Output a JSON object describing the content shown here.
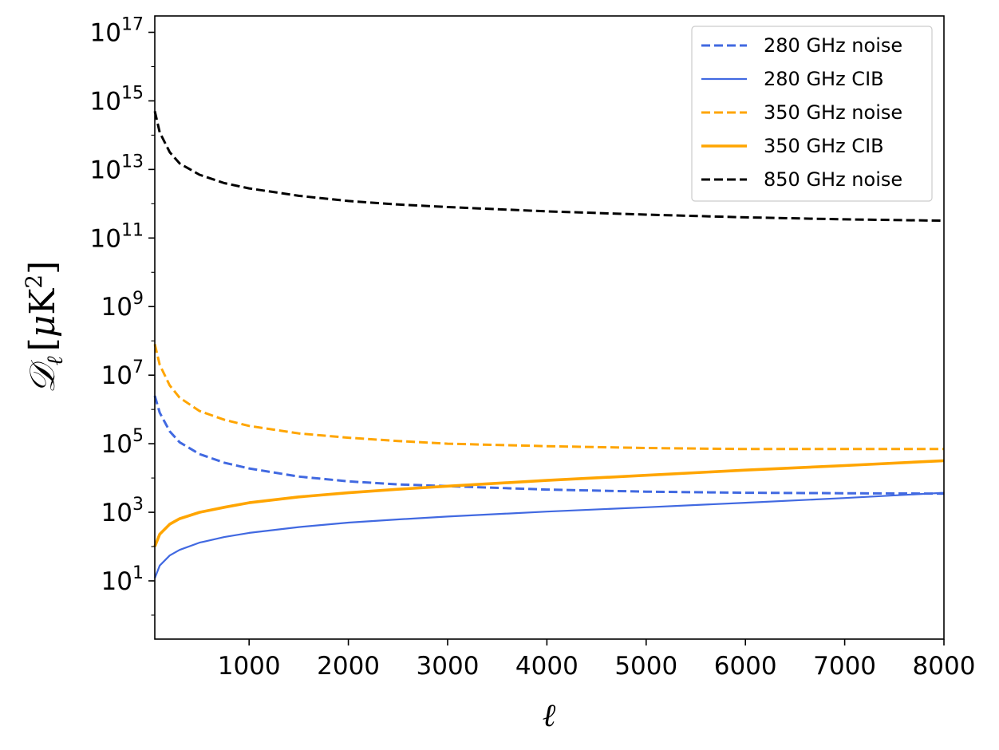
{
  "chart_data": {
    "type": "line",
    "xlabel": "ℓ",
    "ylabel": {
      "symbol": "𝒟",
      "subscript": "ℓ",
      "units": "[μK²]",
      "units_open": "[",
      "units_mu": "μ",
      "units_k": "K",
      "units_exp": "2",
      "units_close": "]"
    },
    "xlim": [
      50,
      8000
    ],
    "ylim": [
      0.2,
      3e+17
    ],
    "y_scale": "log",
    "x_ticks": [
      1000,
      2000,
      3000,
      4000,
      5000,
      6000,
      7000,
      8000
    ],
    "x_tick_labels": [
      "1000",
      "2000",
      "3000",
      "4000",
      "5000",
      "6000",
      "7000",
      "8000"
    ],
    "y_ticks": [
      {
        "value": 10,
        "base": "10",
        "exp": "1"
      },
      {
        "value": 1000,
        "base": "10",
        "exp": "3"
      },
      {
        "value": 100000,
        "base": "10",
        "exp": "5"
      },
      {
        "value": 10000000,
        "base": "10",
        "exp": "7"
      },
      {
        "value": 1000000000,
        "base": "10",
        "exp": "9"
      },
      {
        "value": 100000000000,
        "base": "10",
        "exp": "11"
      },
      {
        "value": 10000000000000,
        "base": "10",
        "exp": "13"
      },
      {
        "value": 1000000000000000,
        "base": "10",
        "exp": "15"
      },
      {
        "value": 100000000000000000,
        "base": "10",
        "exp": "17"
      }
    ],
    "grid": false,
    "legend_position": "top-right",
    "series": [
      {
        "name": "280 GHz noise",
        "color": "#4169e1",
        "style": "dashed",
        "x": [
          50,
          100,
          200,
          300,
          500,
          750,
          1000,
          1500,
          2000,
          2500,
          3000,
          4000,
          5000,
          6000,
          7000,
          8000
        ],
        "y": [
          2500000,
          800000,
          230000,
          110000,
          50000,
          28000,
          19000,
          11000,
          8000,
          6500,
          5800,
          4600,
          4000,
          3700,
          3600,
          3500
        ]
      },
      {
        "name": "280 GHz CIB",
        "color": "#4169e1",
        "style": "solid",
        "x": [
          50,
          100,
          200,
          300,
          500,
          750,
          1000,
          1500,
          2000,
          2500,
          3000,
          4000,
          5000,
          6000,
          7000,
          8000
        ],
        "y": [
          12,
          28,
          55,
          80,
          130,
          190,
          250,
          370,
          500,
          620,
          750,
          1050,
          1400,
          1900,
          2600,
          3700
        ]
      },
      {
        "name": "350 GHz noise",
        "color": "#ffa500",
        "style": "dashed",
        "x": [
          50,
          100,
          200,
          300,
          500,
          750,
          1000,
          1500,
          2000,
          2500,
          3000,
          4000,
          5000,
          6000,
          7000,
          8000
        ],
        "y": [
          80000000,
          20000000,
          5000000,
          2200000,
          900000,
          500000,
          330000,
          200000,
          150000,
          120000,
          100000,
          85000,
          75000,
          70000,
          70000,
          70000
        ]
      },
      {
        "name": "350 GHz CIB",
        "color": "#ffa500",
        "style": "solid",
        "x": [
          50,
          100,
          200,
          300,
          500,
          750,
          1000,
          1500,
          2000,
          2500,
          3000,
          4000,
          5000,
          6000,
          7000,
          8000
        ],
        "y": [
          100,
          230,
          450,
          650,
          1000,
          1400,
          1900,
          2800,
          3700,
          4700,
          5800,
          8500,
          12000,
          17000,
          23000,
          32000
        ]
      },
      {
        "name": "850 GHz noise",
        "color": "#000000",
        "style": "dashed",
        "x": [
          50,
          100,
          200,
          300,
          500,
          750,
          1000,
          1500,
          2000,
          2500,
          3000,
          4000,
          5000,
          6000,
          7000,
          8000
        ],
        "y": [
          500000000000000,
          120000000000000,
          32000000000000,
          15000000000000,
          7000000000000,
          4000000000000,
          2800000000000,
          1700000000000,
          1200000000000,
          950000000000,
          800000000000,
          600000000000,
          480000000000,
          400000000000,
          350000000000,
          320000000000
        ]
      }
    ]
  }
}
